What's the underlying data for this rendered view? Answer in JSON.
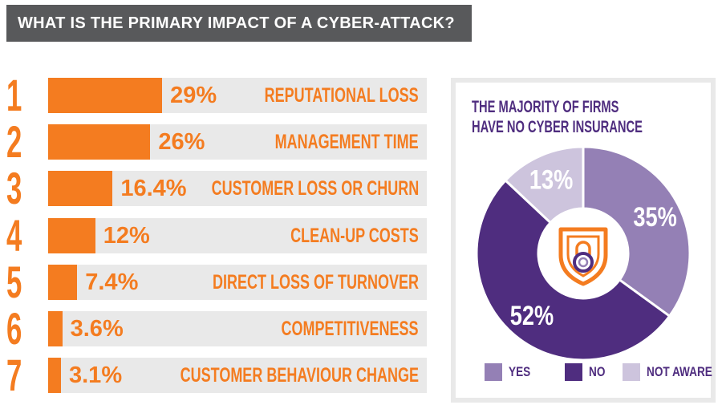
{
  "header": {
    "title": "WHAT IS THE PRIMARY IMPACT OF A CYBER-ATTACK?"
  },
  "chart_data": [
    {
      "type": "bar",
      "orientation": "horizontal",
      "title": "WHAT IS THE PRIMARY IMPACT OF A CYBER-ATTACK?",
      "xlim": [
        0,
        100
      ],
      "categories": [
        "REPUTATIONAL LOSS",
        "MANAGEMENT TIME",
        "CUSTOMER LOSS OR CHURN",
        "CLEAN-UP COSTS",
        "DIRECT LOSS OF TURNOVER",
        "COMPETITIVENESS",
        "CUSTOMER BEHAVIOUR CHANGE"
      ],
      "ranks": [
        "1",
        "2",
        "3",
        "4",
        "5",
        "6",
        "7"
      ],
      "values": [
        29,
        26,
        16.4,
        12,
        7.4,
        3.6,
        3.1
      ],
      "value_labels": [
        "29%",
        "26%",
        "16.4%",
        "12%",
        "7.4%",
        "3.6%",
        "3.1%"
      ],
      "bar_color": "#f47c20",
      "track_color": "#e9e9e9"
    },
    {
      "type": "pie",
      "style": "donut",
      "title_lines": [
        "THE  MAJORITY OF FIRMS",
        "HAVE NO CYBER INSURANCE"
      ],
      "categories": [
        "YES",
        "NO",
        "NOT AWARE"
      ],
      "values": [
        35,
        52,
        13
      ],
      "value_labels": [
        "35%",
        "52%",
        "13%"
      ],
      "colors": [
        "#9480b5",
        "#4f2d7f",
        "#cdc4dd"
      ],
      "legend": "bottom",
      "center_icon": "shield-lock-icon"
    }
  ],
  "colors": {
    "orange": "#f47c20",
    "purple_dark": "#4f2d7f",
    "title_bg": "#58595b",
    "card_border": "#e9e9e9"
  }
}
